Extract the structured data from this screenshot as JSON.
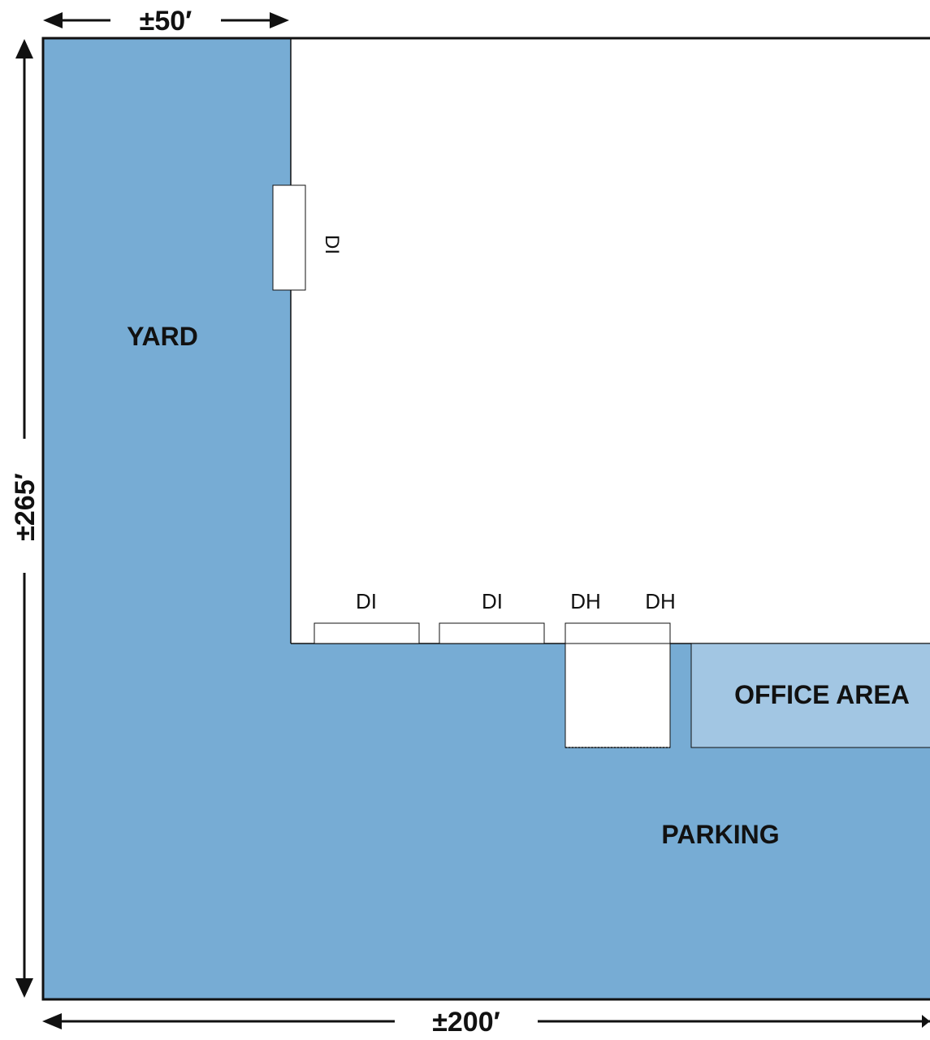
{
  "colors": {
    "outdoor": "#77acd4",
    "office": "#a2c6e3",
    "building": "#ffffff",
    "line": "#111111"
  },
  "dimensions": {
    "top_width": "±50′",
    "height": "±265′",
    "bottom_width": "±200′"
  },
  "areas": {
    "yard": "YARD",
    "office": "OFFICE AREA",
    "parking": "PARKING"
  },
  "doors": {
    "side": "DI",
    "bottom_1": "DI",
    "bottom_2": "DI",
    "bottom_3": "DH",
    "bottom_4": "DH"
  }
}
